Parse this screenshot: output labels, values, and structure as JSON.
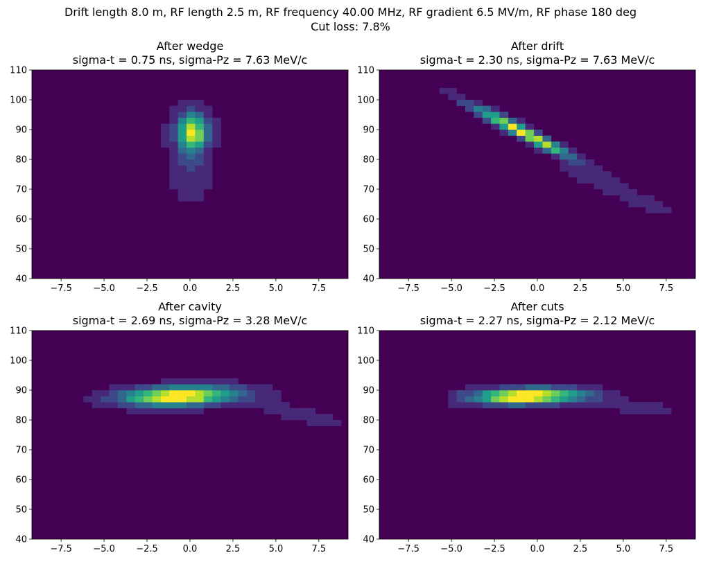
{
  "figure": {
    "suptitle_line1": "Drift length 8.0 m, RF length 2.5 m, RF frequency 40.00 MHz, RF gradient 6.5 MV/m, RF phase 180 deg",
    "suptitle_line2": "Cut loss: 7.8%"
  },
  "chart_data": [
    {
      "type": "heatmap",
      "title_line1": "After wedge",
      "title_line2": "sigma-t = 0.75 ns, sigma-Pz = 7.63 MeV/c",
      "xlim": [
        -9.2,
        9.2
      ],
      "ylim": [
        40,
        110
      ],
      "xticks": [
        -7.5,
        -5.0,
        -2.5,
        0.0,
        2.5,
        5.0,
        7.5
      ],
      "xtick_labels": [
        "−7.5",
        "−5.0",
        "−2.5",
        "0.0",
        "2.5",
        "5.0",
        "7.5"
      ],
      "yticks": [
        40,
        50,
        60,
        70,
        80,
        90,
        100,
        110
      ],
      "ytick_labels": [
        "40",
        "50",
        "60",
        "70",
        "80",
        "90",
        "100",
        "110"
      ],
      "colormap": [
        "#440154",
        "#482878",
        "#3e4989",
        "#31688e",
        "#26828e",
        "#1f9e89",
        "#35b779",
        "#6ece58",
        "#b5de2b",
        "#fde725"
      ],
      "background": "#440154",
      "bin_width": 0.5,
      "bin_height": 2,
      "blobs": [
        {
          "x": 0.15,
          "y": 89,
          "sx": 0.55,
          "sy": 4.2,
          "rho": 0.0,
          "w": 1.0
        },
        {
          "x": 0.0,
          "y": 76,
          "sx": 0.8,
          "sy": 7.0,
          "rho": 0.0,
          "w": 0.18
        },
        {
          "x": 0.0,
          "y": 90,
          "sx": 1.1,
          "sy": 6.0,
          "rho": 0.0,
          "w": 0.12
        }
      ]
    },
    {
      "type": "heatmap",
      "title_line1": "After drift",
      "title_line2": "sigma-t = 2.30 ns, sigma-Pz = 7.63 MeV/c",
      "xlim": [
        -9.2,
        9.2
      ],
      "ylim": [
        40,
        110
      ],
      "xticks": [
        -7.5,
        -5.0,
        -2.5,
        0.0,
        2.5,
        5.0,
        7.5
      ],
      "xtick_labels": [
        "−7.5",
        "−5.0",
        "−2.5",
        "0.0",
        "2.5",
        "5.0",
        "7.5"
      ],
      "yticks": [
        40,
        50,
        60,
        70,
        80,
        90,
        100,
        110
      ],
      "ytick_labels": [
        "40",
        "50",
        "60",
        "70",
        "80",
        "90",
        "100",
        "110"
      ],
      "colormap": [
        "#440154",
        "#482878",
        "#3e4989",
        "#31688e",
        "#26828e",
        "#1f9e89",
        "#35b779",
        "#6ece58",
        "#b5de2b",
        "#fde725"
      ],
      "background": "#440154",
      "bin_width": 0.5,
      "bin_height": 2,
      "blobs": [
        {
          "x": -0.8,
          "y": 89,
          "sx": 2.0,
          "sy": 6.0,
          "rho": -0.97,
          "w": 1.0
        },
        {
          "x": 4.5,
          "y": 70,
          "sx": 2.2,
          "sy": 5.5,
          "rho": -0.95,
          "w": 0.16
        }
      ]
    },
    {
      "type": "heatmap",
      "title_line1": "After cavity",
      "title_line2": "sigma-t = 2.69 ns, sigma-Pz = 3.28 MeV/c",
      "xlim": [
        -9.2,
        9.2
      ],
      "ylim": [
        40,
        110
      ],
      "xticks": [
        -7.5,
        -5.0,
        -2.5,
        0.0,
        2.5,
        5.0,
        7.5
      ],
      "xtick_labels": [
        "−7.5",
        "−5.0",
        "−2.5",
        "0.0",
        "2.5",
        "5.0",
        "7.5"
      ],
      "yticks": [
        40,
        50,
        60,
        70,
        80,
        90,
        100,
        110
      ],
      "ytick_labels": [
        "40",
        "50",
        "60",
        "70",
        "80",
        "90",
        "100",
        "110"
      ],
      "colormap": [
        "#440154",
        "#482878",
        "#3e4989",
        "#31688e",
        "#26828e",
        "#1f9e89",
        "#35b779",
        "#6ece58",
        "#b5de2b",
        "#fde725"
      ],
      "background": "#440154",
      "bin_width": 0.5,
      "bin_height": 2,
      "blobs": [
        {
          "x": -0.6,
          "y": 88,
          "sx": 2.3,
          "sy": 2.2,
          "rho": 0.2,
          "w": 1.0
        },
        {
          "x": 6.0,
          "y": 82.5,
          "sx": 1.8,
          "sy": 3.0,
          "rho": -0.85,
          "w": 0.14
        }
      ]
    },
    {
      "type": "heatmap",
      "title_line1": "After cuts",
      "title_line2": "sigma-t = 2.27 ns, sigma-Pz = 2.12 MeV/c",
      "xlim": [
        -9.2,
        9.2
      ],
      "ylim": [
        40,
        110
      ],
      "xticks": [
        -7.5,
        -5.0,
        -2.5,
        0.0,
        2.5,
        5.0,
        7.5
      ],
      "xtick_labels": [
        "−7.5",
        "−5.0",
        "−2.5",
        "0.0",
        "2.5",
        "5.0",
        "7.5"
      ],
      "yticks": [
        40,
        50,
        60,
        70,
        80,
        90,
        100,
        110
      ],
      "ytick_labels": [
        "40",
        "50",
        "60",
        "70",
        "80",
        "90",
        "100",
        "110"
      ],
      "colormap": [
        "#440154",
        "#482878",
        "#3e4989",
        "#31688e",
        "#26828e",
        "#1f9e89",
        "#35b779",
        "#6ece58",
        "#b5de2b",
        "#fde725"
      ],
      "background": "#440154",
      "bin_width": 0.5,
      "bin_height": 2,
      "xcut": [
        -5.0,
        8.0
      ],
      "ycut": [
        80,
        92
      ],
      "blobs": [
        {
          "x": -0.6,
          "y": 88,
          "sx": 2.2,
          "sy": 1.8,
          "rho": 0.15,
          "w": 1.0
        },
        {
          "x": 6.0,
          "y": 84,
          "sx": 1.5,
          "sy": 2.0,
          "rho": -0.6,
          "w": 0.12
        }
      ]
    }
  ]
}
